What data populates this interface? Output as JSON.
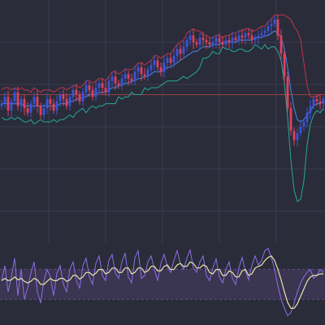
{
  "colors": {
    "background": "#2a2c3a",
    "grid": "#3a3d52",
    "bull_candle": "#3a55d8",
    "bear_candle": "#e0405e",
    "upper_band": "#c0364a",
    "lower_band": "#27a89a",
    "middle_band": "#4a86e8",
    "reference_line": "#b84a3e",
    "osc_panel": "#3a3550",
    "osc_fast": "#8e6ee8",
    "osc_slow": "#e8e4a8",
    "osc_level": "#6a5aa0"
  },
  "chart_data": [
    {
      "type": "candlestick",
      "panel": "price",
      "grid": true,
      "ylim": [
        0,
        100
      ],
      "reference_line": 62,
      "x": [
        0,
        1,
        2,
        3,
        4,
        5,
        6,
        7,
        8,
        9,
        10,
        11,
        12,
        13,
        14,
        15,
        16,
        17,
        18,
        19,
        20,
        21,
        22,
        23,
        24,
        25,
        26,
        27,
        28,
        29,
        30,
        31,
        32,
        33,
        34,
        35,
        36,
        37,
        38,
        39,
        40,
        41,
        42,
        43,
        44,
        45,
        46,
        47,
        48,
        49,
        50,
        51,
        52,
        53,
        54,
        55,
        56,
        57,
        58,
        59,
        60,
        61,
        62,
        63,
        64,
        65,
        66,
        67,
        68,
        69,
        70,
        71,
        72,
        73,
        74,
        75,
        76,
        77,
        78,
        79,
        80,
        81,
        82,
        83,
        84,
        85,
        86,
        87,
        88,
        89,
        90,
        91,
        92,
        93,
        94,
        95,
        96,
        97,
        98,
        99
      ],
      "close": [
        58,
        61,
        55,
        59,
        63,
        57,
        60,
        56,
        54,
        58,
        61,
        57,
        53,
        56,
        60,
        58,
        55,
        59,
        62,
        60,
        57,
        61,
        64,
        62,
        59,
        63,
        66,
        64,
        61,
        65,
        67,
        65,
        63,
        68,
        70,
        67,
        66,
        69,
        71,
        69,
        68,
        72,
        74,
        71,
        70,
        73,
        75,
        77,
        74,
        72,
        76,
        78,
        76,
        79,
        82,
        80,
        83,
        86,
        88,
        85,
        84,
        87,
        86,
        85,
        84,
        85,
        87,
        85,
        84,
        86,
        85,
        87,
        86,
        88,
        87,
        89,
        88,
        86,
        87,
        88,
        89,
        90,
        92,
        93,
        95,
        88,
        80,
        70,
        56,
        46,
        42,
        45,
        48,
        50,
        54,
        57,
        60,
        59,
        58,
        60
      ],
      "upper_band": [
        64,
        65,
        65,
        64,
        65,
        64,
        65,
        64,
        64,
        63,
        65,
        64,
        63,
        64,
        64,
        64,
        63,
        64,
        65,
        65,
        64,
        65,
        66,
        66,
        65,
        66,
        68,
        68,
        67,
        68,
        69,
        69,
        68,
        70,
        72,
        72,
        71,
        72,
        73,
        73,
        73,
        74,
        76,
        76,
        75,
        76,
        77,
        79,
        79,
        78,
        79,
        80,
        80,
        82,
        84,
        85,
        86,
        89,
        90,
        91,
        90,
        90,
        88,
        88,
        87,
        87,
        88,
        88,
        87,
        88,
        88,
        89,
        89,
        90,
        90,
        91,
        91,
        90,
        90,
        91,
        92,
        92,
        94,
        95,
        97,
        97,
        97,
        97,
        96,
        95,
        92,
        90,
        86,
        76,
        66,
        61,
        61,
        61,
        62,
        62
      ],
      "middle_band": [
        58,
        58,
        58,
        58,
        58,
        58,
        58,
        57,
        57,
        57,
        57,
        57,
        57,
        57,
        57,
        57,
        57,
        57,
        58,
        58,
        58,
        59,
        59,
        60,
        60,
        61,
        61,
        62,
        62,
        62,
        63,
        63,
        63,
        64,
        65,
        65,
        66,
        66,
        67,
        67,
        68,
        68,
        69,
        69,
        70,
        70,
        71,
        72,
        72,
        72,
        73,
        74,
        74,
        75,
        76,
        77,
        78,
        79,
        80,
        81,
        81,
        82,
        83,
        83,
        83,
        84,
        84,
        84,
        85,
        85,
        85,
        85,
        85,
        86,
        86,
        86,
        86,
        86,
        87,
        87,
        87,
        88,
        88,
        89,
        90,
        89,
        87,
        82,
        74,
        64,
        56,
        51,
        50,
        51,
        53,
        55,
        57,
        58,
        58,
        59
      ],
      "lower_band": [
        52,
        51,
        51,
        52,
        51,
        52,
        51,
        50,
        50,
        51,
        49,
        50,
        51,
        50,
        50,
        50,
        51,
        50,
        51,
        51,
        52,
        53,
        52,
        54,
        55,
        56,
        54,
        56,
        57,
        56,
        57,
        57,
        58,
        58,
        58,
        58,
        61,
        60,
        61,
        61,
        63,
        62,
        62,
        62,
        65,
        64,
        65,
        65,
        65,
        66,
        67,
        68,
        68,
        68,
        68,
        69,
        70,
        69,
        70,
        71,
        72,
        74,
        78,
        78,
        79,
        81,
        80,
        80,
        83,
        82,
        82,
        81,
        81,
        82,
        82,
        81,
        81,
        82,
        84,
        83,
        82,
        84,
        82,
        83,
        83,
        81,
        77,
        67,
        52,
        33,
        20,
        15,
        16,
        24,
        40,
        49,
        53,
        55,
        54,
        56
      ]
    },
    {
      "type": "line",
      "panel": "oscillator",
      "grid": true,
      "ylim": [
        0,
        100
      ],
      "level_lines": [
        30,
        70
      ],
      "x": [
        0,
        1,
        2,
        3,
        4,
        5,
        6,
        7,
        8,
        9,
        10,
        11,
        12,
        13,
        14,
        15,
        16,
        17,
        18,
        19,
        20,
        21,
        22,
        23,
        24,
        25,
        26,
        27,
        28,
        29,
        30,
        31,
        32,
        33,
        34,
        35,
        36,
        37,
        38,
        39,
        40,
        41,
        42,
        43,
        44,
        45,
        46,
        47,
        48,
        49,
        50,
        51,
        52,
        53,
        54,
        55,
        56,
        57,
        58,
        59,
        60,
        61,
        62,
        63,
        64,
        65,
        66,
        67,
        68,
        69,
        70,
        71,
        72,
        73,
        74,
        75,
        76,
        77,
        78,
        79,
        80,
        81,
        82,
        83,
        84,
        85,
        86,
        87,
        88,
        89,
        90,
        91,
        92,
        93,
        94,
        95,
        96,
        97,
        98,
        99
      ],
      "series": [
        {
          "values": [
            55,
            75,
            40,
            60,
            85,
            35,
            70,
            30,
            45,
            65,
            80,
            40,
            25,
            55,
            70,
            60,
            35,
            65,
            75,
            50,
            40,
            70,
            80,
            55,
            45,
            75,
            85,
            60,
            50,
            78,
            88,
            62,
            55,
            82,
            90,
            65,
            58,
            80,
            92,
            60,
            52,
            85,
            95,
            58,
            62,
            80,
            88,
            70,
            55,
            78,
            90,
            74,
            66,
            82,
            95,
            78,
            70,
            85,
            96,
            72,
            66,
            80,
            88,
            62,
            55,
            72,
            84,
            60,
            52,
            70,
            80,
            58,
            50,
            72,
            86,
            68,
            56,
            75,
            88,
            76,
            82,
            95,
            98,
            86,
            70,
            48,
            30,
            18,
            8,
            12,
            25,
            40,
            52,
            60,
            66,
            70,
            58,
            62,
            70,
            66
          ]
        },
        {
          "values": [
            55,
            58,
            55,
            56,
            60,
            56,
            58,
            54,
            52,
            54,
            58,
            56,
            50,
            50,
            54,
            58,
            55,
            55,
            58,
            58,
            54,
            56,
            62,
            62,
            57,
            60,
            66,
            66,
            62,
            65,
            70,
            70,
            64,
            66,
            72,
            72,
            66,
            66,
            72,
            72,
            64,
            66,
            72,
            72,
            66,
            68,
            74,
            74,
            68,
            68,
            74,
            76,
            70,
            70,
            76,
            78,
            74,
            74,
            80,
            78,
            72,
            72,
            76,
            74,
            66,
            64,
            70,
            70,
            62,
            62,
            68,
            66,
            60,
            60,
            68,
            70,
            62,
            64,
            72,
            74,
            76,
            82,
            86,
            88,
            82,
            70,
            56,
            40,
            26,
            18,
            18,
            24,
            34,
            44,
            54,
            60,
            62,
            62,
            64,
            64
          ]
        }
      ]
    }
  ]
}
